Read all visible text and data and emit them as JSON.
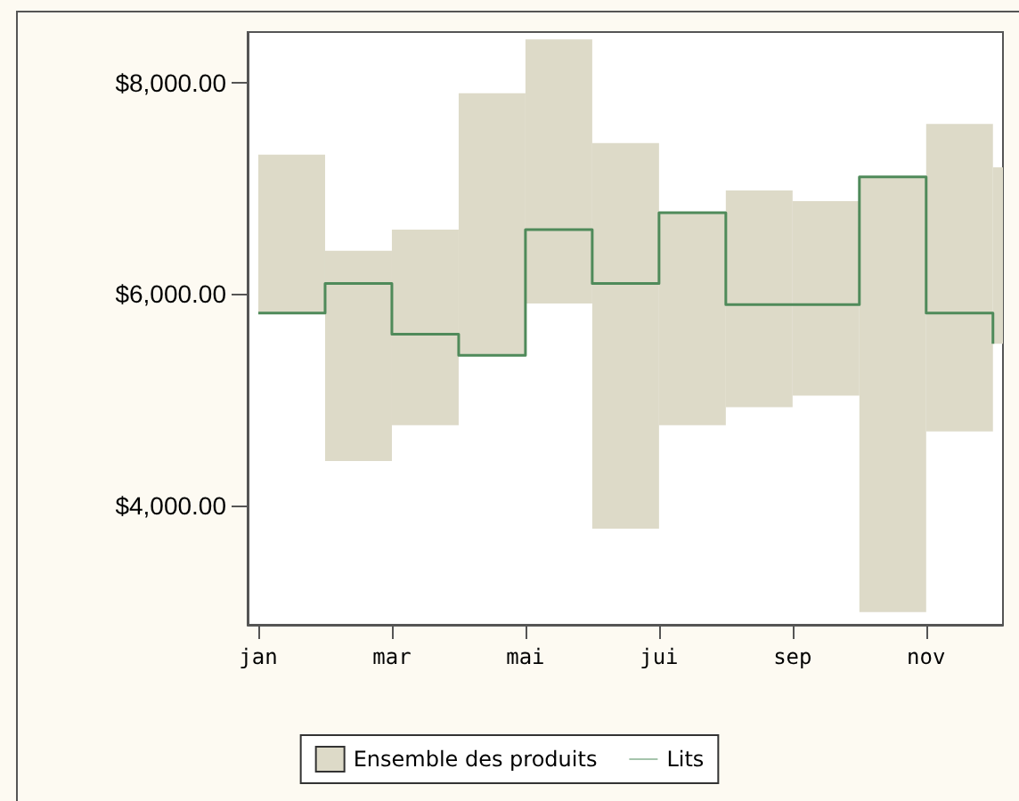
{
  "chart_data": {
    "type": "step",
    "categories": [
      "jan",
      null,
      "mar",
      null,
      "mai",
      null,
      "jui",
      null,
      "sep",
      null,
      "nov",
      null
    ],
    "series": [
      {
        "name": "Ensemble des produits",
        "type": "bar",
        "color": "#dddac8",
        "base": [
          5820,
          4420,
          4760,
          5420,
          5910,
          3780,
          4760,
          4930,
          5040,
          2990,
          4700,
          5530
        ],
        "values": [
          1500,
          1990,
          1850,
          2480,
          2500,
          3650,
          2010,
          2050,
          1840,
          4120,
          2910,
          1670
        ]
      },
      {
        "name": "Lits",
        "color": "#4f8a5a",
        "values": [
          5820,
          6100,
          5620,
          5420,
          6610,
          6100,
          6770,
          5900,
          5900,
          7110,
          5820,
          5530
        ]
      }
    ],
    "ylim": [
      2870,
      8480
    ],
    "yticks": [
      {
        "value": 4000,
        "label": "$4,000.00"
      },
      {
        "value": 6000,
        "label": "$6,000.00"
      },
      {
        "value": 8000,
        "label": "$8,000.00"
      }
    ],
    "legend": "bottom",
    "grid": false,
    "marker": "none",
    "line_style": "solid"
  }
}
